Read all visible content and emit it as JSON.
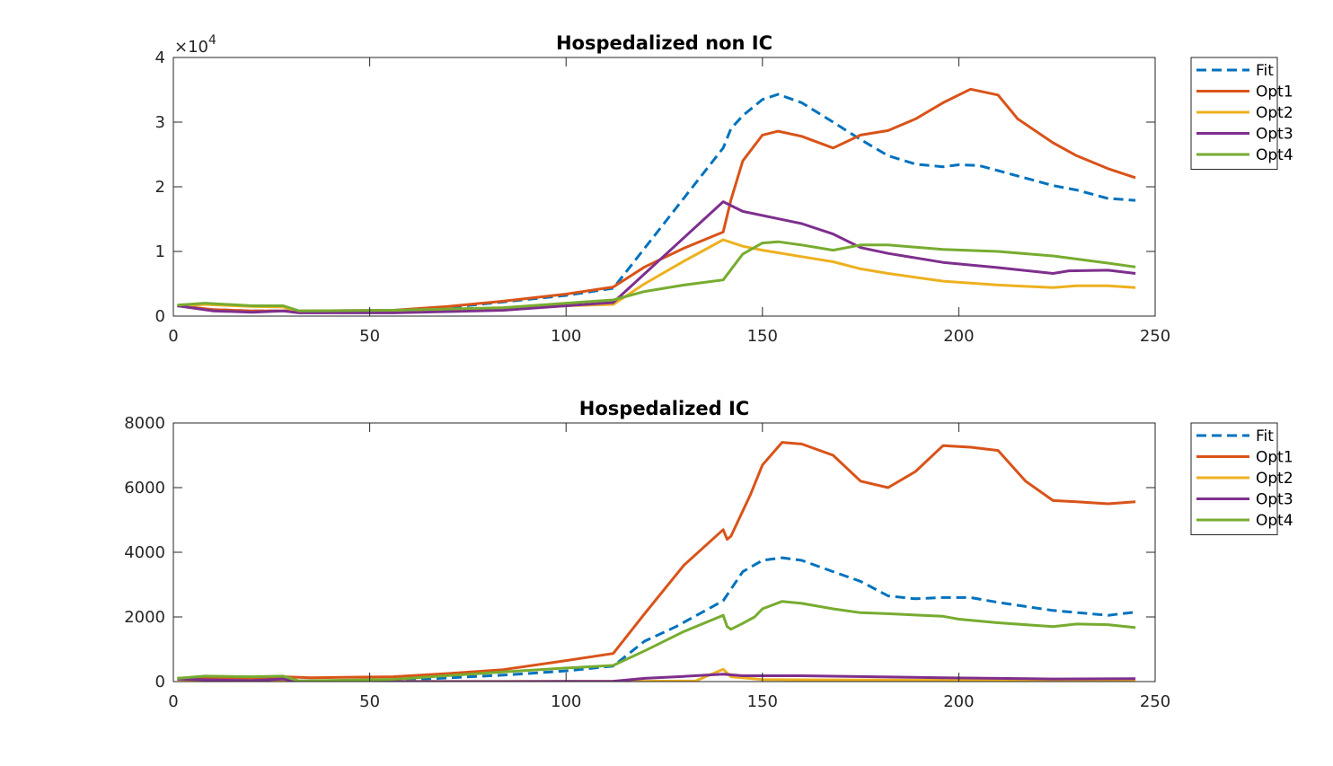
{
  "chart_data": [
    {
      "type": "line",
      "title": "Hospedalized non IC",
      "xlabel": "",
      "ylabel": "",
      "xlim": [
        0,
        250
      ],
      "ylim": [
        0,
        40000
      ],
      "x_ticks": [
        0,
        50,
        100,
        150,
        200,
        250
      ],
      "x_tick_labels": [
        "0",
        "50",
        "100",
        "150",
        "200",
        "250"
      ],
      "y_ticks": [
        0,
        10000,
        20000,
        30000,
        40000
      ],
      "y_tick_labels": [
        "0",
        "1",
        "2",
        "3",
        "4"
      ],
      "y_exponent_label": "×10",
      "y_exponent_power": "4",
      "grid": false,
      "legend_position": "outside-top-right",
      "series": [
        {
          "name": "Fit",
          "color": "#0072BD",
          "dashed": true,
          "points": [
            [
              1,
              1600
            ],
            [
              10,
              1000
            ],
            [
              20,
              800
            ],
            [
              28,
              800
            ],
            [
              35,
              700
            ],
            [
              56,
              700
            ],
            [
              70,
              1300
            ],
            [
              84,
              2200
            ],
            [
              100,
              3200
            ],
            [
              112,
              4300
            ],
            [
              140,
              26000
            ],
            [
              142,
              29000
            ],
            [
              145,
              31000
            ],
            [
              150,
              33500
            ],
            [
              154,
              34300
            ],
            [
              160,
              33000
            ],
            [
              168,
              30000
            ],
            [
              175,
              27300
            ],
            [
              182,
              24800
            ],
            [
              189,
              23500
            ],
            [
              196,
              23100
            ],
            [
              200,
              23400
            ],
            [
              205,
              23300
            ],
            [
              210,
              22500
            ],
            [
              224,
              20200
            ],
            [
              230,
              19500
            ],
            [
              238,
              18200
            ],
            [
              245,
              17900
            ]
          ]
        },
        {
          "name": "Opt1",
          "color": "#D95319",
          "dashed": false,
          "points": [
            [
              1,
              1600
            ],
            [
              10,
              1000
            ],
            [
              20,
              800
            ],
            [
              28,
              800
            ],
            [
              32,
              800
            ],
            [
              56,
              900
            ],
            [
              70,
              1500
            ],
            [
              84,
              2300
            ],
            [
              100,
              3400
            ],
            [
              112,
              4500
            ],
            [
              120,
              7600
            ],
            [
              130,
              10500
            ],
            [
              140,
              13000
            ],
            [
              142,
              18000
            ],
            [
              145,
              24000
            ],
            [
              150,
              28000
            ],
            [
              154,
              28600
            ],
            [
              160,
              27800
            ],
            [
              168,
              26000
            ],
            [
              175,
              28000
            ],
            [
              182,
              28700
            ],
            [
              189,
              30500
            ],
            [
              196,
              33000
            ],
            [
              203,
              35100
            ],
            [
              210,
              34200
            ],
            [
              215,
              30500
            ],
            [
              224,
              26800
            ],
            [
              230,
              24800
            ],
            [
              238,
              22800
            ],
            [
              245,
              21400
            ]
          ]
        },
        {
          "name": "Opt2",
          "color": "#EDB120",
          "dashed": false,
          "points": [
            [
              1,
              1600
            ],
            [
              8,
              1800
            ],
            [
              20,
              1500
            ],
            [
              28,
              1400
            ],
            [
              32,
              700
            ],
            [
              56,
              700
            ],
            [
              84,
              1100
            ],
            [
              100,
              1600
            ],
            [
              112,
              1800
            ],
            [
              120,
              5000
            ],
            [
              130,
              8500
            ],
            [
              140,
              11800
            ],
            [
              145,
              10800
            ],
            [
              150,
              10200
            ],
            [
              160,
              9200
            ],
            [
              168,
              8400
            ],
            [
              175,
              7300
            ],
            [
              182,
              6600
            ],
            [
              196,
              5400
            ],
            [
              210,
              4800
            ],
            [
              224,
              4400
            ],
            [
              230,
              4700
            ],
            [
              238,
              4700
            ],
            [
              245,
              4400
            ]
          ]
        },
        {
          "name": "Opt3",
          "color": "#7E2F8E",
          "dashed": false,
          "points": [
            [
              1,
              1600
            ],
            [
              10,
              800
            ],
            [
              20,
              600
            ],
            [
              28,
              800
            ],
            [
              32,
              500
            ],
            [
              56,
              500
            ],
            [
              84,
              900
            ],
            [
              100,
              1600
            ],
            [
              112,
              2100
            ],
            [
              140,
              17700
            ],
            [
              145,
              16200
            ],
            [
              160,
              14300
            ],
            [
              168,
              12700
            ],
            [
              175,
              10600
            ],
            [
              182,
              9700
            ],
            [
              196,
              8300
            ],
            [
              210,
              7500
            ],
            [
              224,
              6600
            ],
            [
              228,
              7000
            ],
            [
              238,
              7100
            ],
            [
              245,
              6600
            ]
          ]
        },
        {
          "name": "Opt4",
          "color": "#77AC30",
          "dashed": false,
          "points": [
            [
              1,
              1700
            ],
            [
              8,
              2000
            ],
            [
              20,
              1600
            ],
            [
              28,
              1600
            ],
            [
              32,
              800
            ],
            [
              56,
              900
            ],
            [
              84,
              1300
            ],
            [
              100,
              2000
            ],
            [
              112,
              2500
            ],
            [
              120,
              3800
            ],
            [
              130,
              4800
            ],
            [
              140,
              5600
            ],
            [
              142,
              7200
            ],
            [
              145,
              9600
            ],
            [
              150,
              11300
            ],
            [
              154,
              11500
            ],
            [
              160,
              11000
            ],
            [
              168,
              10200
            ],
            [
              175,
              11000
            ],
            [
              182,
              11000
            ],
            [
              196,
              10300
            ],
            [
              210,
              10000
            ],
            [
              224,
              9300
            ],
            [
              238,
              8200
            ],
            [
              245,
              7600
            ]
          ]
        }
      ]
    },
    {
      "type": "line",
      "title": "Hospedalized IC",
      "xlabel": "",
      "ylabel": "",
      "xlim": [
        0,
        250
      ],
      "ylim": [
        0,
        8000
      ],
      "x_ticks": [
        0,
        50,
        100,
        150,
        200,
        250
      ],
      "x_tick_labels": [
        "0",
        "50",
        "100",
        "150",
        "200",
        "250"
      ],
      "y_ticks": [
        0,
        2000,
        4000,
        6000,
        8000
      ],
      "y_tick_labels": [
        "0",
        "2000",
        "4000",
        "6000",
        "8000"
      ],
      "grid": false,
      "legend_position": "outside-top-right",
      "series": [
        {
          "name": "Fit",
          "color": "#0072BD",
          "dashed": true,
          "points": [
            [
              1,
              100
            ],
            [
              10,
              130
            ],
            [
              20,
              100
            ],
            [
              28,
              110
            ],
            [
              32,
              20
            ],
            [
              56,
              30
            ],
            [
              84,
              200
            ],
            [
              100,
              330
            ],
            [
              112,
              480
            ],
            [
              120,
              1250
            ],
            [
              128,
              1700
            ],
            [
              140,
              2500
            ],
            [
              145,
              3400
            ],
            [
              150,
              3750
            ],
            [
              155,
              3830
            ],
            [
              160,
              3750
            ],
            [
              168,
              3400
            ],
            [
              175,
              3100
            ],
            [
              182,
              2650
            ],
            [
              189,
              2560
            ],
            [
              196,
              2600
            ],
            [
              203,
              2600
            ],
            [
              210,
              2450
            ],
            [
              224,
              2200
            ],
            [
              238,
              2050
            ],
            [
              245,
              2150
            ]
          ]
        },
        {
          "name": "Opt1",
          "color": "#D95319",
          "dashed": false,
          "points": [
            [
              1,
              100
            ],
            [
              10,
              130
            ],
            [
              20,
              110
            ],
            [
              28,
              150
            ],
            [
              35,
              120
            ],
            [
              56,
              150
            ],
            [
              70,
              250
            ],
            [
              84,
              370
            ],
            [
              100,
              650
            ],
            [
              112,
              870
            ],
            [
              120,
              2100
            ],
            [
              130,
              3600
            ],
            [
              140,
              4700
            ],
            [
              141,
              4400
            ],
            [
              142,
              4500
            ],
            [
              147,
              5800
            ],
            [
              150,
              6700
            ],
            [
              155,
              7400
            ],
            [
              160,
              7350
            ],
            [
              168,
              7000
            ],
            [
              175,
              6200
            ],
            [
              182,
              6000
            ],
            [
              189,
              6500
            ],
            [
              196,
              7300
            ],
            [
              203,
              7250
            ],
            [
              210,
              7150
            ],
            [
              217,
              6200
            ],
            [
              224,
              5600
            ],
            [
              230,
              5560
            ],
            [
              238,
              5500
            ],
            [
              245,
              5560
            ]
          ]
        },
        {
          "name": "Opt2",
          "color": "#EDB120",
          "dashed": false,
          "points": [
            [
              1,
              60
            ],
            [
              10,
              40
            ],
            [
              20,
              30
            ],
            [
              28,
              10
            ],
            [
              32,
              5
            ],
            [
              84,
              5
            ],
            [
              112,
              5
            ],
            [
              120,
              10
            ],
            [
              133,
              20
            ],
            [
              140,
              380
            ],
            [
              142,
              150
            ],
            [
              150,
              60
            ],
            [
              245,
              20
            ]
          ]
        },
        {
          "name": "Opt3",
          "color": "#7E2F8E",
          "dashed": false,
          "points": [
            [
              1,
              80
            ],
            [
              10,
              50
            ],
            [
              20,
              30
            ],
            [
              28,
              80
            ],
            [
              32,
              0
            ],
            [
              56,
              0
            ],
            [
              84,
              0
            ],
            [
              112,
              10
            ],
            [
              120,
              100
            ],
            [
              130,
              160
            ],
            [
              140,
              230
            ],
            [
              145,
              180
            ],
            [
              160,
              180
            ],
            [
              196,
              120
            ],
            [
              224,
              80
            ],
            [
              245,
              90
            ]
          ]
        },
        {
          "name": "Opt4",
          "color": "#77AC30",
          "dashed": false,
          "points": [
            [
              1,
              100
            ],
            [
              8,
              170
            ],
            [
              20,
              150
            ],
            [
              28,
              170
            ],
            [
              32,
              20
            ],
            [
              56,
              70
            ],
            [
              84,
              300
            ],
            [
              100,
              420
            ],
            [
              112,
              500
            ],
            [
              120,
              950
            ],
            [
              130,
              1550
            ],
            [
              139,
              2000
            ],
            [
              140,
              2050
            ],
            [
              141,
              1700
            ],
            [
              142,
              1620
            ],
            [
              145,
              1800
            ],
            [
              148,
              2000
            ],
            [
              150,
              2250
            ],
            [
              155,
              2480
            ],
            [
              160,
              2420
            ],
            [
              168,
              2250
            ],
            [
              175,
              2130
            ],
            [
              182,
              2100
            ],
            [
              196,
              2020
            ],
            [
              200,
              1930
            ],
            [
              210,
              1820
            ],
            [
              224,
              1700
            ],
            [
              230,
              1780
            ],
            [
              238,
              1760
            ],
            [
              245,
              1670
            ]
          ]
        }
      ]
    }
  ]
}
